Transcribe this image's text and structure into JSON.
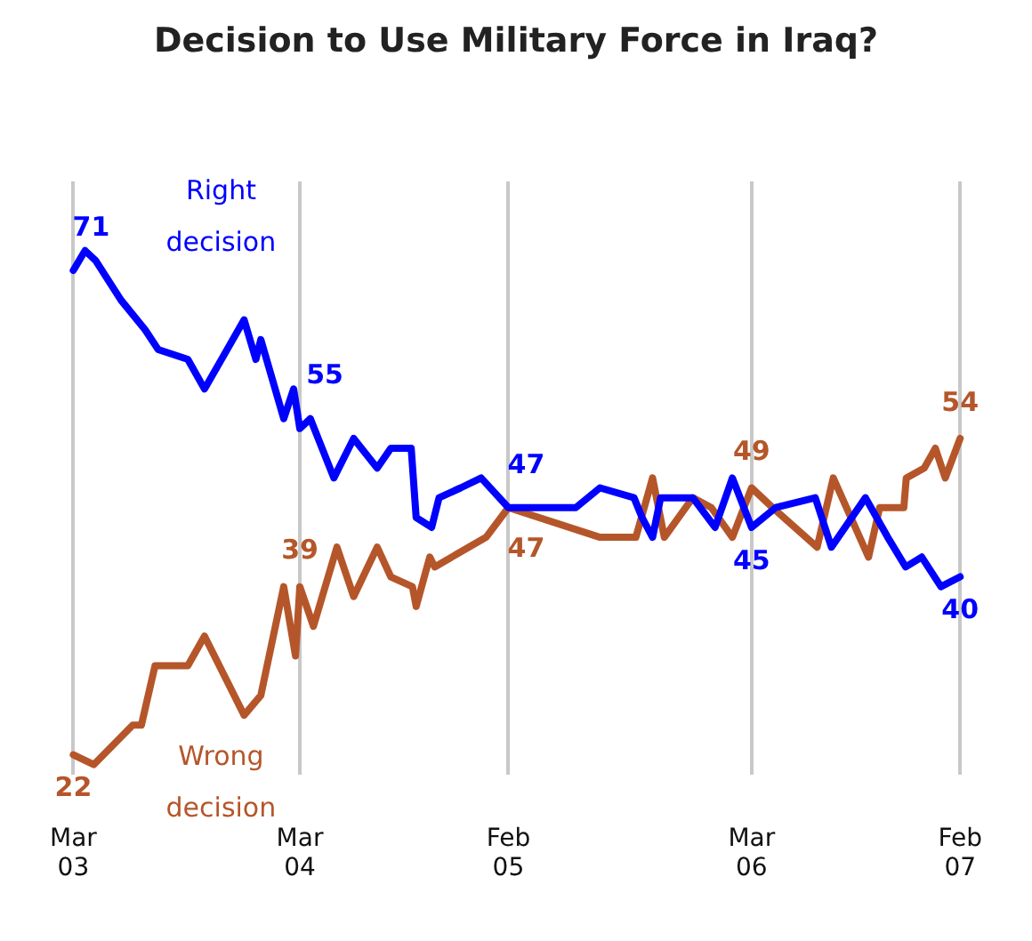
{
  "chart_data": {
    "type": "line",
    "title": "Decision to Use Military Force in Iraq?",
    "xlim": [
      "2003-03-01",
      "2007-02-01"
    ],
    "xticks": [
      {
        "value": "2003-03-01",
        "label": "Mar 03"
      },
      {
        "value": "2004-03-01",
        "label": "Mar 04"
      },
      {
        "value": "2005-02-01",
        "label": "Feb 05"
      },
      {
        "value": "2006-03-01",
        "label": "Mar 06"
      },
      {
        "value": "2007-02-01",
        "label": "Feb 07"
      }
    ],
    "grid": "x",
    "legend": false,
    "marker": "none",
    "line_style": "solid",
    "series": [
      {
        "name": "Right decision",
        "color": "#0000ff",
        "x": [
          "2003-03-01",
          "2003-03-20",
          "2003-04-06",
          "2003-05-17",
          "2003-06-25",
          "2003-07-16",
          "2003-09-02",
          "2003-09-29",
          "2003-12-02",
          "2003-12-21",
          "2003-12-29",
          "2004-02-04",
          "2004-02-20",
          "2004-03-01",
          "2004-03-18",
          "2004-04-25",
          "2004-05-27",
          "2004-07-04",
          "2004-07-26",
          "2004-08-28",
          "2004-09-05",
          "2004-09-30",
          "2004-10-12",
          "2004-11-16",
          "2004-12-19",
          "2005-02-01",
          "2005-05-21",
          "2005-06-29",
          "2005-08-23",
          "2005-09-05",
          "2005-09-22",
          "2005-10-05",
          "2005-11-26",
          "2006-01-01",
          "2006-01-29",
          "2006-03-01",
          "2006-04-09",
          "2006-06-12",
          "2006-07-08",
          "2006-09-01",
          "2006-10-07",
          "2006-11-05",
          "2006-12-01",
          "2007-01-01",
          "2007-02-01"
        ],
        "values": [
          71,
          73,
          72,
          68,
          65,
          63,
          62,
          59,
          66,
          62,
          64,
          56,
          59,
          55,
          56,
          50,
          54,
          51,
          53,
          53,
          46,
          45,
          48,
          49,
          50,
          47,
          47,
          49,
          48,
          46,
          44,
          48,
          48,
          45,
          50,
          45,
          47,
          48,
          43,
          48,
          44,
          41,
          42,
          39,
          40
        ],
        "value_labels": [
          "71",
          null,
          null,
          null,
          null,
          null,
          null,
          null,
          null,
          null,
          null,
          null,
          null,
          "55",
          null,
          null,
          null,
          null,
          null,
          null,
          null,
          null,
          null,
          null,
          null,
          "47",
          null,
          null,
          null,
          null,
          null,
          null,
          null,
          null,
          null,
          "45",
          null,
          null,
          null,
          null,
          null,
          null,
          null,
          null,
          "40"
        ]
      },
      {
        "name": "Wrong decision",
        "color": "#b5562a",
        "x": [
          "2003-03-01",
          "2003-04-03",
          "2003-06-05",
          "2003-06-19",
          "2003-07-11",
          "2003-09-02",
          "2003-09-29",
          "2003-12-02",
          "2003-12-29",
          "2004-02-04",
          "2004-02-23",
          "2004-03-01",
          "2004-03-23",
          "2004-04-30",
          "2004-05-27",
          "2004-07-04",
          "2004-07-26",
          "2004-08-30",
          "2004-09-05",
          "2004-09-27",
          "2004-10-05",
          "2004-11-29",
          "2004-12-27",
          "2005-02-01",
          "2005-06-29",
          "2005-08-26",
          "2005-09-22",
          "2005-10-11",
          "2005-11-26",
          "2005-12-26",
          "2006-01-29",
          "2006-03-01",
          "2006-04-04",
          "2006-06-15",
          "2006-07-11",
          "2006-09-06",
          "2006-09-24",
          "2006-11-02",
          "2006-11-06",
          "2006-12-05",
          "2006-12-23",
          "2007-01-08",
          "2007-02-01"
        ],
        "values": [
          22,
          21,
          25,
          25,
          31,
          31,
          34,
          26,
          28,
          39,
          32,
          39,
          35,
          43,
          38,
          43,
          40,
          39,
          37,
          42,
          41,
          43,
          44,
          47,
          44,
          44,
          50,
          44,
          48,
          47,
          44,
          49,
          47,
          43,
          50,
          42,
          47,
          47,
          50,
          51,
          53,
          50,
          54
        ],
        "value_labels": [
          "22",
          null,
          null,
          null,
          null,
          null,
          null,
          null,
          null,
          null,
          null,
          "39",
          null,
          null,
          null,
          null,
          null,
          null,
          null,
          null,
          null,
          null,
          null,
          "47",
          null,
          null,
          null,
          null,
          null,
          null,
          null,
          "49",
          null,
          null,
          null,
          null,
          null,
          null,
          null,
          null,
          null,
          null,
          "54"
        ]
      }
    ]
  }
}
